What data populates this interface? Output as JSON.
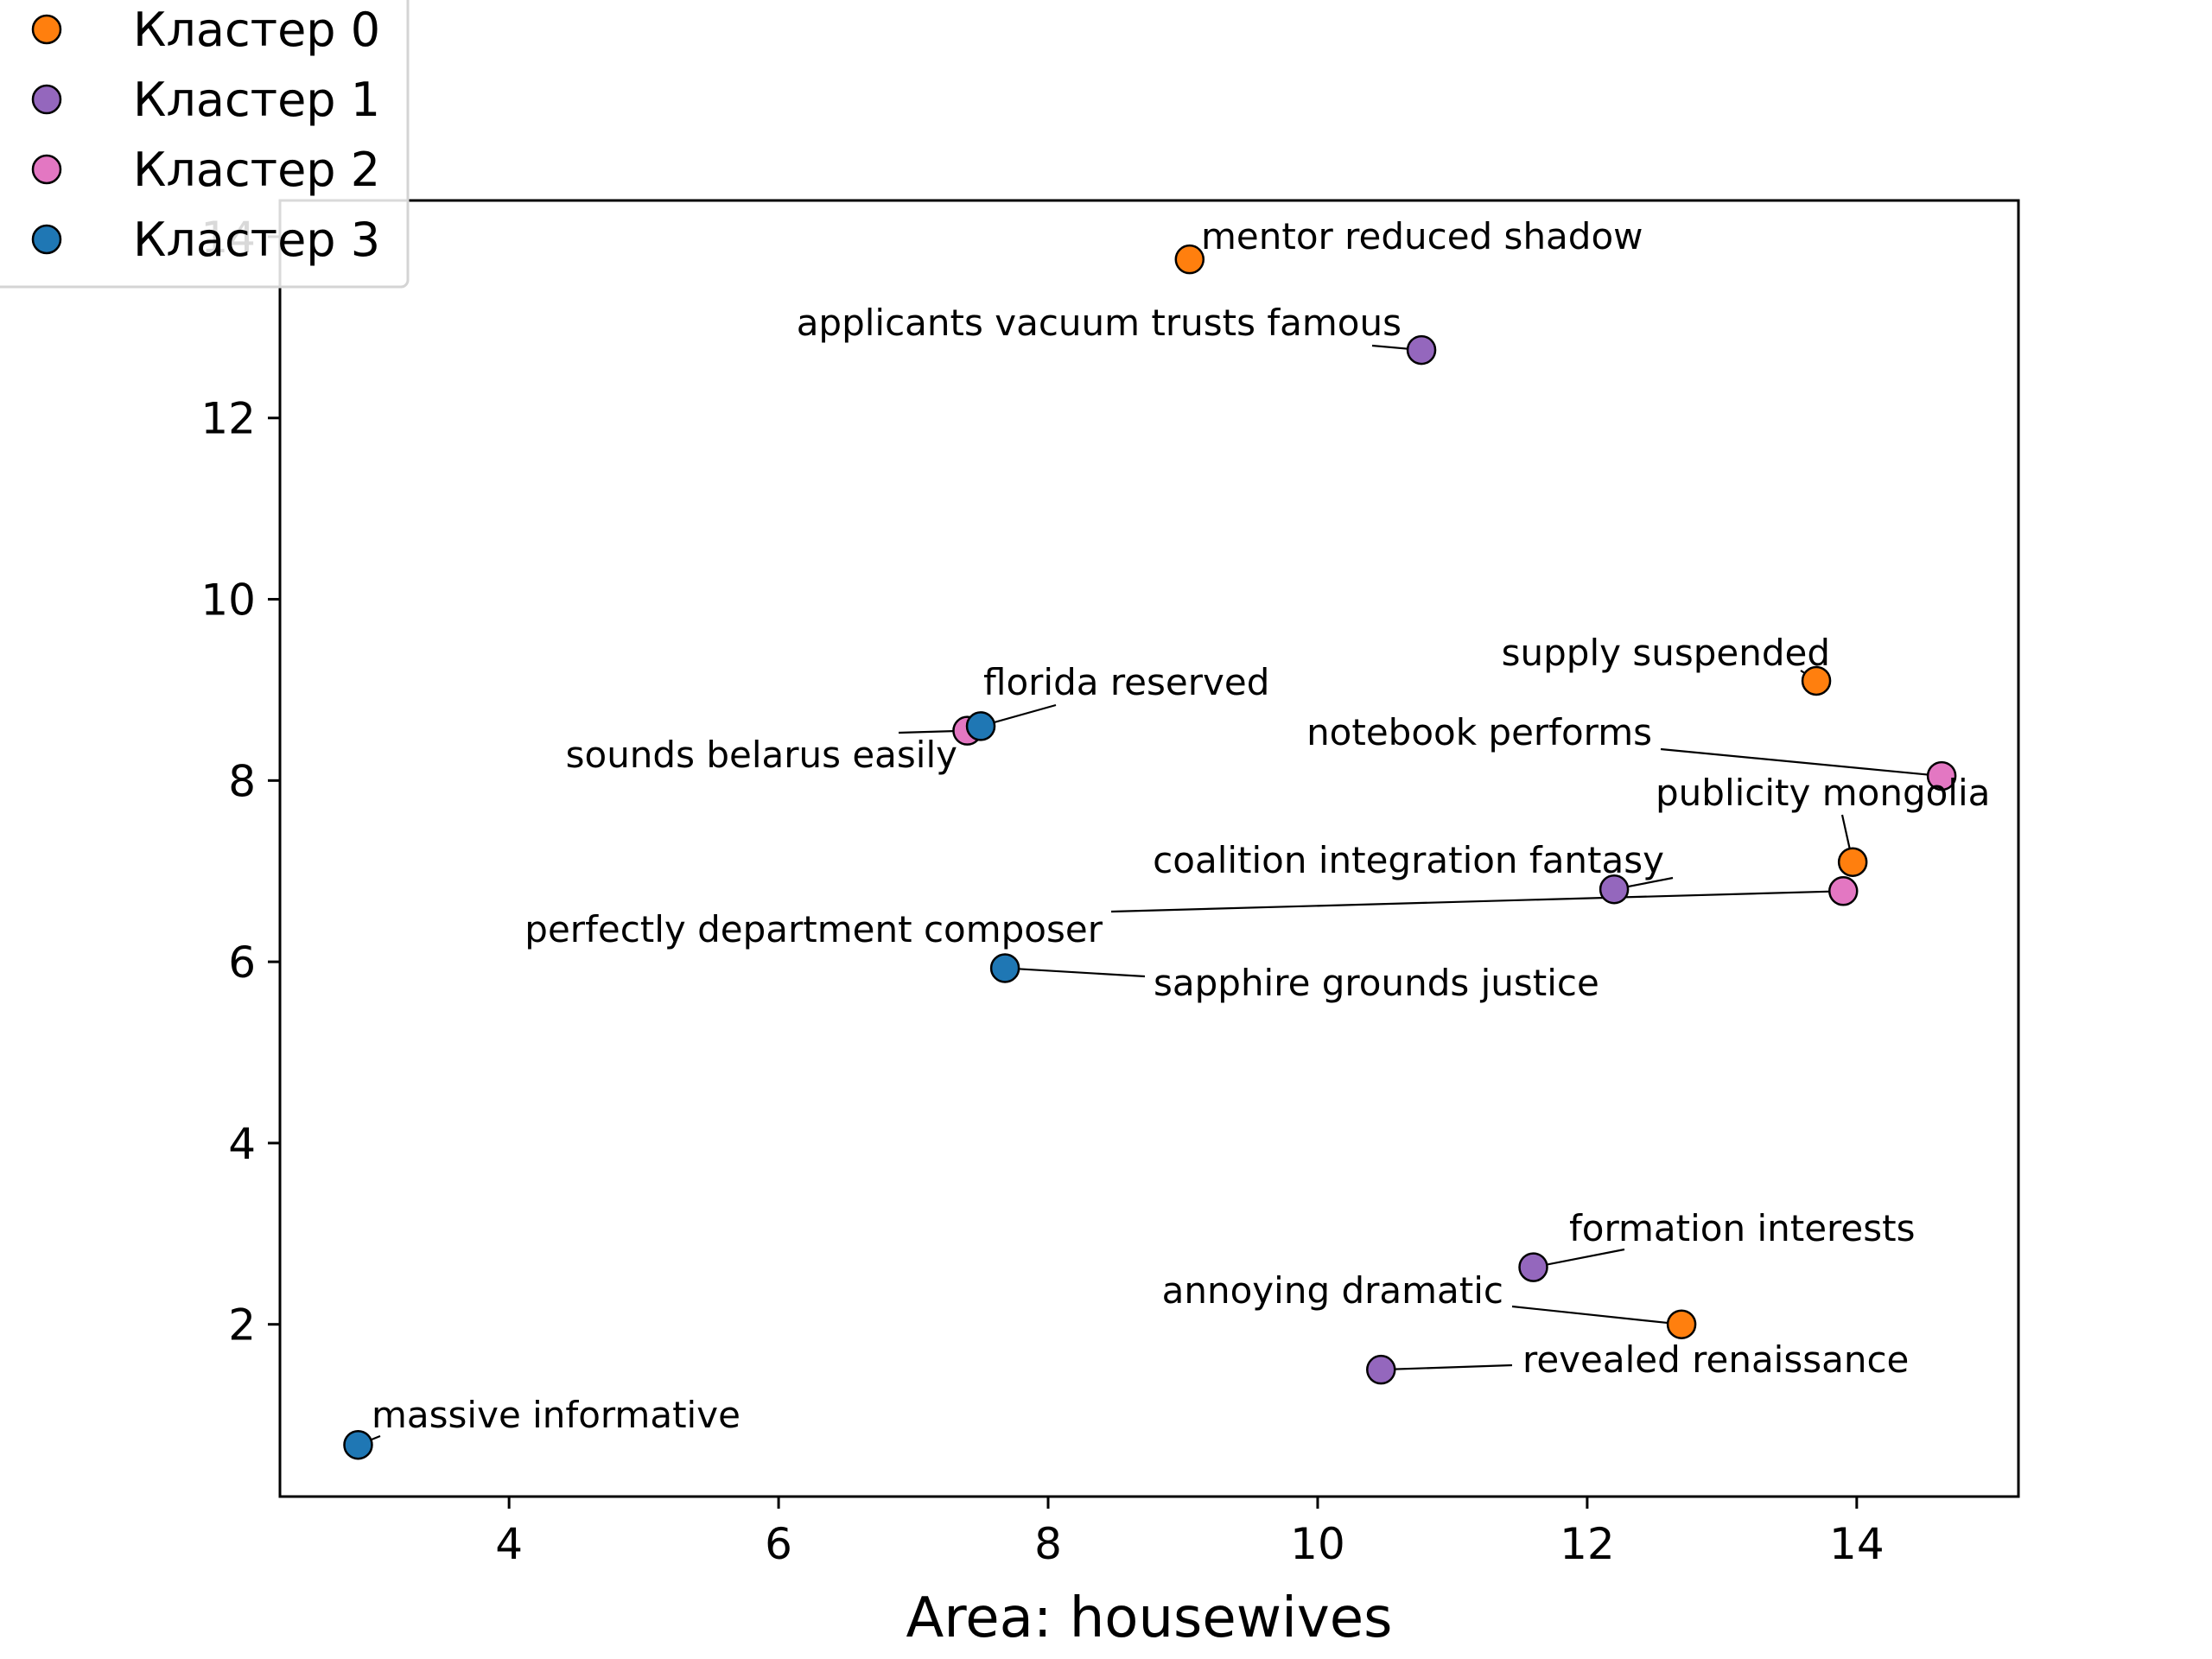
{
  "chart_data": {
    "type": "scatter",
    "xlabel": "Area: housewives",
    "ylabel": "",
    "xlim": [
      2.3,
      15.2
    ],
    "ylim": [
      0.1,
      14.4
    ],
    "xticks": [
      4,
      6,
      8,
      10,
      12,
      14
    ],
    "yticks": [
      2,
      4,
      6,
      8,
      10,
      12,
      14
    ],
    "grid": false,
    "legend_position": "top-left",
    "series": [
      {
        "name": "Кластер 0",
        "color": "#ff7f0e",
        "points": [
          {
            "x": 9.05,
            "y": 13.75,
            "label": "mentor reduced shadow"
          },
          {
            "x": 13.7,
            "y": 9.1,
            "label": "supply suspended"
          },
          {
            "x": 13.97,
            "y": 7.1,
            "label": "publicity mongolia"
          },
          {
            "x": 12.7,
            "y": 2.0,
            "label": "annoying dramatic"
          }
        ]
      },
      {
        "name": "Кластер 1",
        "color": "#9467bd",
        "points": [
          {
            "x": 10.77,
            "y": 12.75,
            "label": "applicants vacuum trusts famous"
          },
          {
            "x": 12.2,
            "y": 6.8,
            "label": "coalition integration fantasy"
          },
          {
            "x": 11.6,
            "y": 2.63,
            "label": "formation interests"
          },
          {
            "x": 10.47,
            "y": 1.5,
            "label": "revealed renaissance"
          }
        ]
      },
      {
        "name": "Кластер 2",
        "color": "#e377c2",
        "points": [
          {
            "x": 7.4,
            "y": 8.55,
            "label": "sounds belarus easily"
          },
          {
            "x": 14.63,
            "y": 8.05,
            "label": "notebook performs"
          },
          {
            "x": 13.9,
            "y": 6.78,
            "label": "perfectly department composer"
          }
        ]
      },
      {
        "name": "Кластер 3",
        "color": "#1f77b4",
        "points": [
          {
            "x": 7.5,
            "y": 8.6,
            "label": "florida reserved"
          },
          {
            "x": 7.68,
            "y": 5.93,
            "label": "sapphire grounds justice"
          },
          {
            "x": 2.88,
            "y": 0.67,
            "label": "massive informative"
          }
        ]
      }
    ]
  }
}
